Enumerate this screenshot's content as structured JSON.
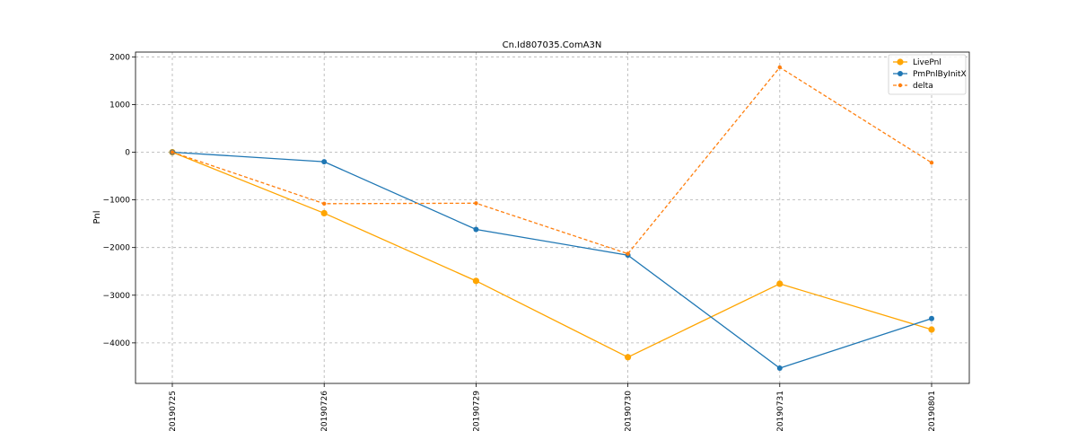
{
  "chart_data": {
    "type": "line",
    "title": "Cn.Id807035.ComA3N",
    "xlabel": "",
    "ylabel": "Pnl",
    "categories": [
      "20190725",
      "20190726",
      "20190729",
      "20190730",
      "20190731",
      "20190801"
    ],
    "ylim": [
      -4850,
      2100
    ],
    "yticks": [
      2000,
      1000,
      0,
      -1000,
      -2000,
      -3000,
      -4000
    ],
    "ytick_labels": [
      "2000",
      "1000",
      "0",
      "−1000",
      "−2000",
      "−3000",
      "−4000"
    ],
    "grid": true,
    "legend_position": "top-right",
    "series": [
      {
        "name": "LivePnl",
        "values": [
          0,
          -1280,
          -2700,
          -4300,
          -2760,
          -3720
        ],
        "color": "#ffa500",
        "dashed": false,
        "marker_size": "large"
      },
      {
        "name": "PmPnlByInitX",
        "values": [
          0,
          -200,
          -1620,
          -2160,
          -4530,
          -3490
        ],
        "color": "#1f77b4",
        "dashed": false,
        "marker_size": "medium"
      },
      {
        "name": "delta",
        "values": [
          0,
          -1080,
          -1070,
          -2130,
          1780,
          -220
        ],
        "color": "#ff7f0e",
        "dashed": true,
        "marker_size": "small"
      }
    ]
  }
}
